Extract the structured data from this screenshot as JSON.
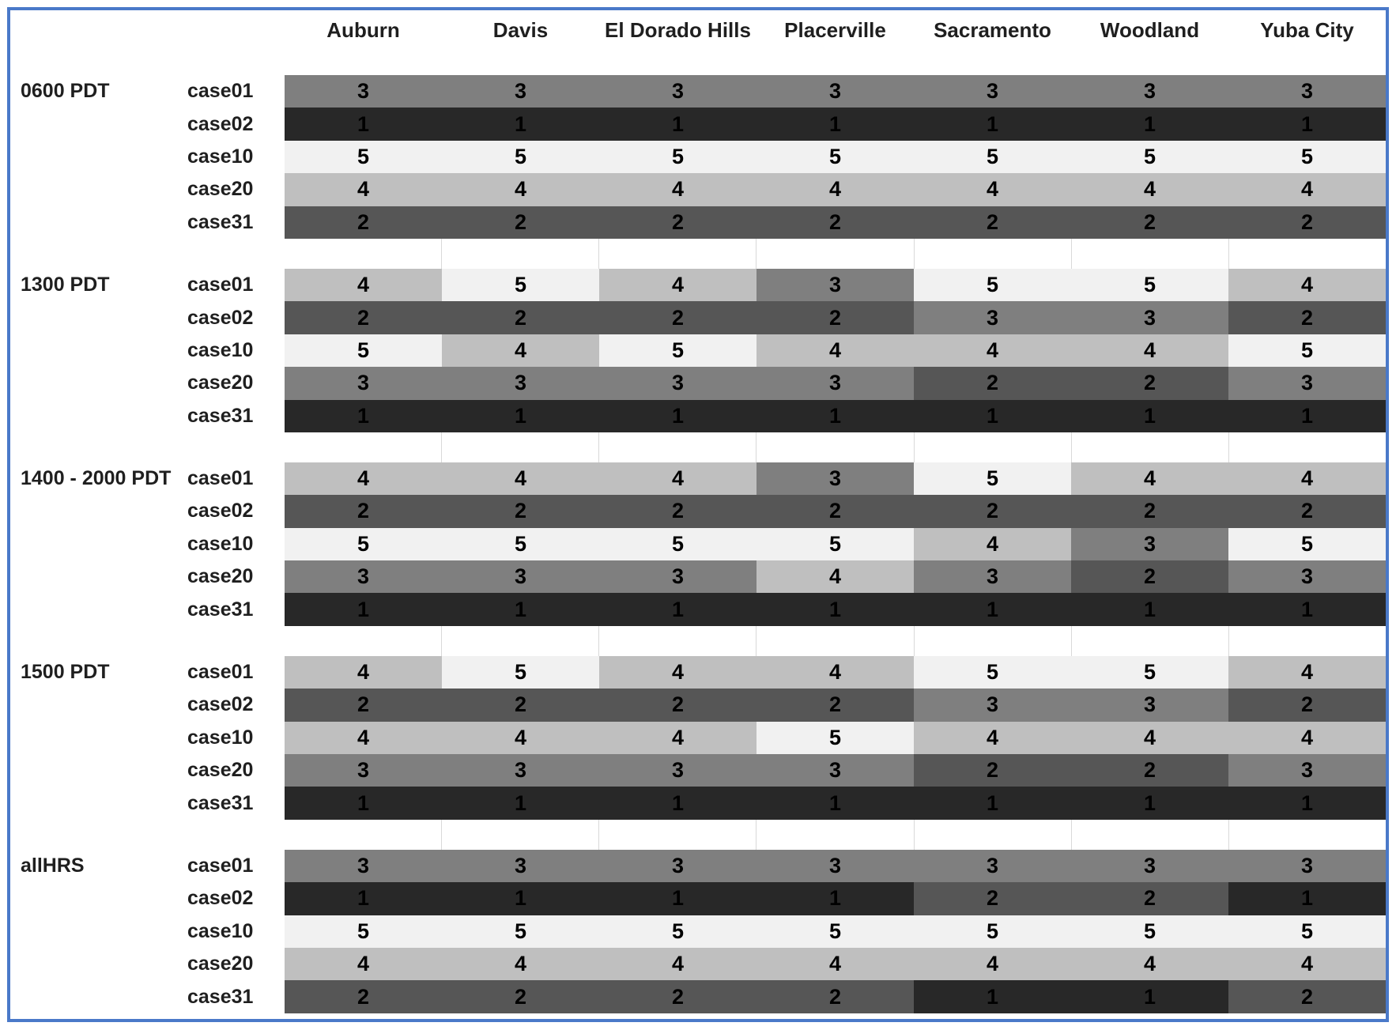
{
  "figure": {
    "border_color": "#4a79c9",
    "background": "#ffffff",
    "grid_line_color": "#d9d9d9",
    "text_color": "#1f1f1f"
  },
  "chart_data": {
    "type": "heatmap",
    "title": "",
    "columns": [
      "Auburn",
      "Davis",
      "El Dorado Hills",
      "Placerville",
      "Sacramento",
      "Woodland",
      "Yuba City"
    ],
    "row_labels": [
      "case01",
      "case02",
      "case10",
      "case20",
      "case31"
    ],
    "groups": [
      {
        "label": "0600 PDT",
        "values": [
          [
            3,
            3,
            3,
            3,
            3,
            3,
            3
          ],
          [
            1,
            1,
            1,
            1,
            1,
            1,
            1
          ],
          [
            5,
            5,
            5,
            5,
            5,
            5,
            5
          ],
          [
            4,
            4,
            4,
            4,
            4,
            4,
            4
          ],
          [
            2,
            2,
            2,
            2,
            2,
            2,
            2
          ]
        ]
      },
      {
        "label": "1300 PDT",
        "values": [
          [
            4,
            5,
            4,
            3,
            5,
            5,
            4
          ],
          [
            2,
            2,
            2,
            2,
            3,
            3,
            2
          ],
          [
            5,
            4,
            5,
            4,
            4,
            4,
            5
          ],
          [
            3,
            3,
            3,
            3,
            2,
            2,
            3
          ],
          [
            1,
            1,
            1,
            1,
            1,
            1,
            1
          ]
        ]
      },
      {
        "label": "1400 - 2000 PDT",
        "values": [
          [
            4,
            4,
            4,
            3,
            5,
            4,
            4
          ],
          [
            2,
            2,
            2,
            2,
            2,
            2,
            2
          ],
          [
            5,
            5,
            5,
            5,
            4,
            3,
            5
          ],
          [
            3,
            3,
            3,
            4,
            3,
            2,
            3
          ],
          [
            1,
            1,
            1,
            1,
            1,
            1,
            1
          ]
        ]
      },
      {
        "label": "1500 PDT",
        "values": [
          [
            4,
            5,
            4,
            4,
            5,
            5,
            4
          ],
          [
            2,
            2,
            2,
            2,
            3,
            3,
            2
          ],
          [
            4,
            4,
            4,
            5,
            4,
            4,
            4
          ],
          [
            3,
            3,
            3,
            3,
            2,
            2,
            3
          ],
          [
            1,
            1,
            1,
            1,
            1,
            1,
            1
          ]
        ]
      },
      {
        "label": "allHRS",
        "values": [
          [
            3,
            3,
            3,
            3,
            3,
            3,
            3
          ],
          [
            1,
            1,
            1,
            1,
            2,
            2,
            1
          ],
          [
            5,
            5,
            5,
            5,
            5,
            5,
            5
          ],
          [
            4,
            4,
            4,
            4,
            4,
            4,
            4
          ],
          [
            2,
            2,
            2,
            2,
            1,
            1,
            2
          ]
        ]
      }
    ],
    "value_colors": {
      "1": "#282828",
      "2": "#565656",
      "3": "#7f7f7f",
      "4": "#bfbfbf",
      "5": "#f1f1f1"
    }
  }
}
